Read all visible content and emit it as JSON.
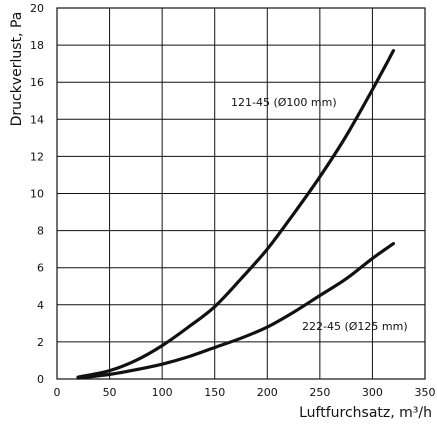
{
  "chart_data": {
    "type": "line",
    "xlabel": "Luftfurchsatz, m³/h",
    "ylabel": "Druckverlust, Pa",
    "xlim": [
      0,
      350
    ],
    "ylim": [
      0,
      20
    ],
    "x_ticks": [
      "0",
      "50",
      "100",
      "150",
      "200",
      "250",
      "300",
      "350"
    ],
    "y_ticks": [
      "0",
      "2",
      "4",
      "6",
      "8",
      "10",
      "12",
      "14",
      "16",
      "18",
      "20"
    ],
    "grid": true,
    "colors": {
      "line": "#111111",
      "grid": "#111111",
      "background": "#ffffff"
    },
    "series": [
      {
        "name": "121-45 (Ø100 mm)",
        "x": [
          20,
          50,
          75,
          100,
          125,
          150,
          175,
          200,
          225,
          250,
          275,
          300,
          320
        ],
        "y": [
          0.1,
          0.45,
          1.0,
          1.8,
          2.8,
          3.9,
          5.4,
          7.0,
          8.9,
          10.9,
          13.1,
          15.6,
          17.7
        ]
      },
      {
        "name": "222-45 (Ø125 mm)",
        "x": [
          20,
          50,
          75,
          100,
          125,
          150,
          175,
          200,
          225,
          250,
          275,
          300,
          320
        ],
        "y": [
          0.05,
          0.25,
          0.5,
          0.8,
          1.2,
          1.7,
          2.2,
          2.8,
          3.6,
          4.5,
          5.4,
          6.5,
          7.3
        ]
      }
    ]
  }
}
